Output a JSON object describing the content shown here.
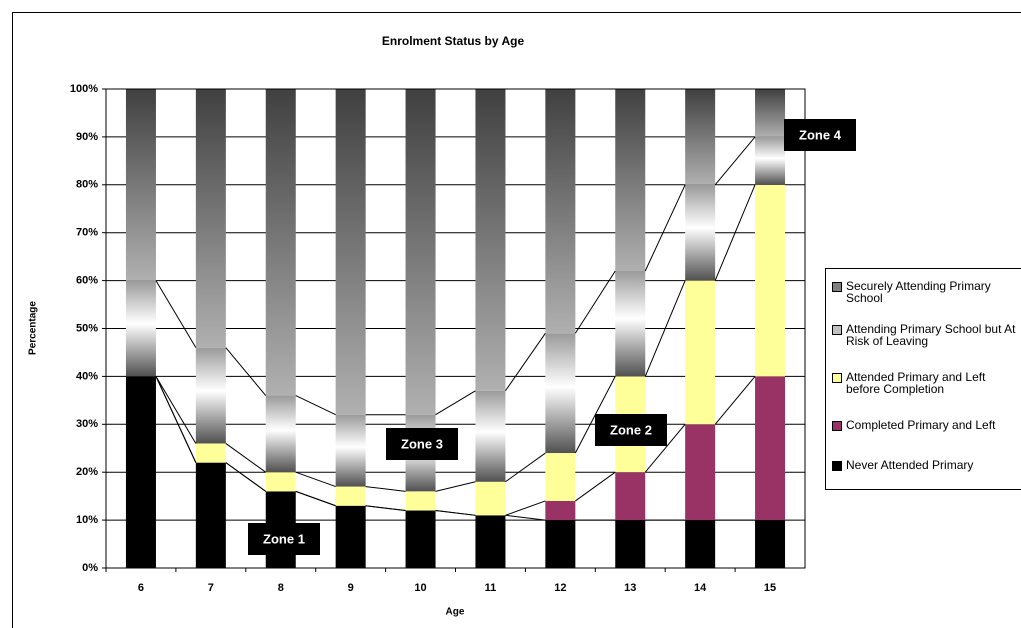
{
  "chart_data": {
    "type": "bar",
    "stacked": true,
    "title": "Enrolment Status by Age",
    "xlabel": "Age",
    "ylabel": "Percentage",
    "categories": [
      "6",
      "7",
      "8",
      "9",
      "10",
      "11",
      "12",
      "13",
      "14",
      "15"
    ],
    "series": [
      {
        "name": "Never Attended Primary",
        "color": "#000000",
        "values": [
          40,
          22,
          16,
          13,
          12,
          11,
          10,
          10,
          10,
          10
        ]
      },
      {
        "name": "Completed Primary and Left",
        "color": "#993366",
        "values": [
          0,
          0,
          0,
          0,
          0,
          0,
          4,
          10,
          20,
          30
        ]
      },
      {
        "name": "Attended Primary and Left before Completion",
        "color": "#ffff99",
        "values": [
          0,
          4,
          4,
          4,
          4,
          7,
          10,
          20,
          30,
          40
        ]
      },
      {
        "name": "Attending Primary School but At Risk of Leaving",
        "color": "#c0c0c0",
        "values": [
          20,
          20,
          16,
          15,
          16,
          19,
          25,
          22,
          20,
          10
        ]
      },
      {
        "name": "Securely Attending Primary School",
        "color": "#808080",
        "values": [
          40,
          54,
          64,
          68,
          68,
          63,
          51,
          38,
          20,
          10
        ]
      }
    ],
    "ylim": [
      0,
      100
    ],
    "yticks": [
      {
        "value": 0,
        "label": "0%"
      },
      {
        "value": 10,
        "label": "10%"
      },
      {
        "value": 20,
        "label": "20%"
      },
      {
        "value": 30,
        "label": "30%"
      },
      {
        "value": 40,
        "label": "40%"
      },
      {
        "value": 50,
        "label": "50%"
      },
      {
        "value": 60,
        "label": "60%"
      },
      {
        "value": 70,
        "label": "70%"
      },
      {
        "value": 80,
        "label": "80%"
      },
      {
        "value": 90,
        "label": "90%"
      },
      {
        "value": 100,
        "label": "100%"
      }
    ],
    "grid": true,
    "legend": "right",
    "annotations": [
      "Zone 1",
      "Zone 3",
      "Zone 2",
      "Zone 4"
    ]
  }
}
